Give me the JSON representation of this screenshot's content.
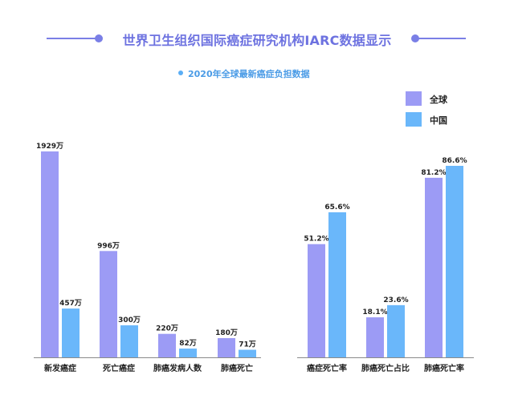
{
  "header": {
    "title": "世界卫生组织国际癌症研究机构IARC数据显示",
    "subtitle": "2020年全球最新癌症负担数据"
  },
  "legend": [
    {
      "label": "全球",
      "color": "#9c9bf5"
    },
    {
      "label": "中国",
      "color": "#6ab7fa"
    }
  ],
  "chart_data": [
    {
      "type": "bar",
      "title": "2020年全球最新癌症负担数据",
      "categories": [
        "新发癌症",
        "死亡癌症",
        "肺癌发病人数",
        "肺癌死亡"
      ],
      "series": [
        {
          "name": "全球",
          "values": [
            1929,
            996,
            220,
            180
          ],
          "labels": [
            "1929万",
            "996万",
            "220万",
            "180万"
          ]
        },
        {
          "name": "中国",
          "values": [
            457,
            300,
            82,
            71
          ],
          "labels": [
            "457万",
            "300万",
            "82万",
            "71万"
          ]
        }
      ],
      "unit": "万",
      "ylim": [
        0,
        1929
      ],
      "grid": false
    },
    {
      "type": "bar",
      "categories": [
        "癌症死亡率",
        "肺癌死亡占比",
        "肺癌死亡率"
      ],
      "series": [
        {
          "name": "全球",
          "values": [
            51.2,
            18.1,
            81.2
          ],
          "labels": [
            "51.2%",
            "18.1%",
            "81.2%"
          ]
        },
        {
          "name": "中国",
          "values": [
            65.6,
            23.6,
            86.6
          ],
          "labels": [
            "65.6%",
            "23.6%",
            "86.6%"
          ]
        }
      ],
      "unit": "%",
      "ylim": [
        0,
        100
      ],
      "grid": false
    }
  ]
}
